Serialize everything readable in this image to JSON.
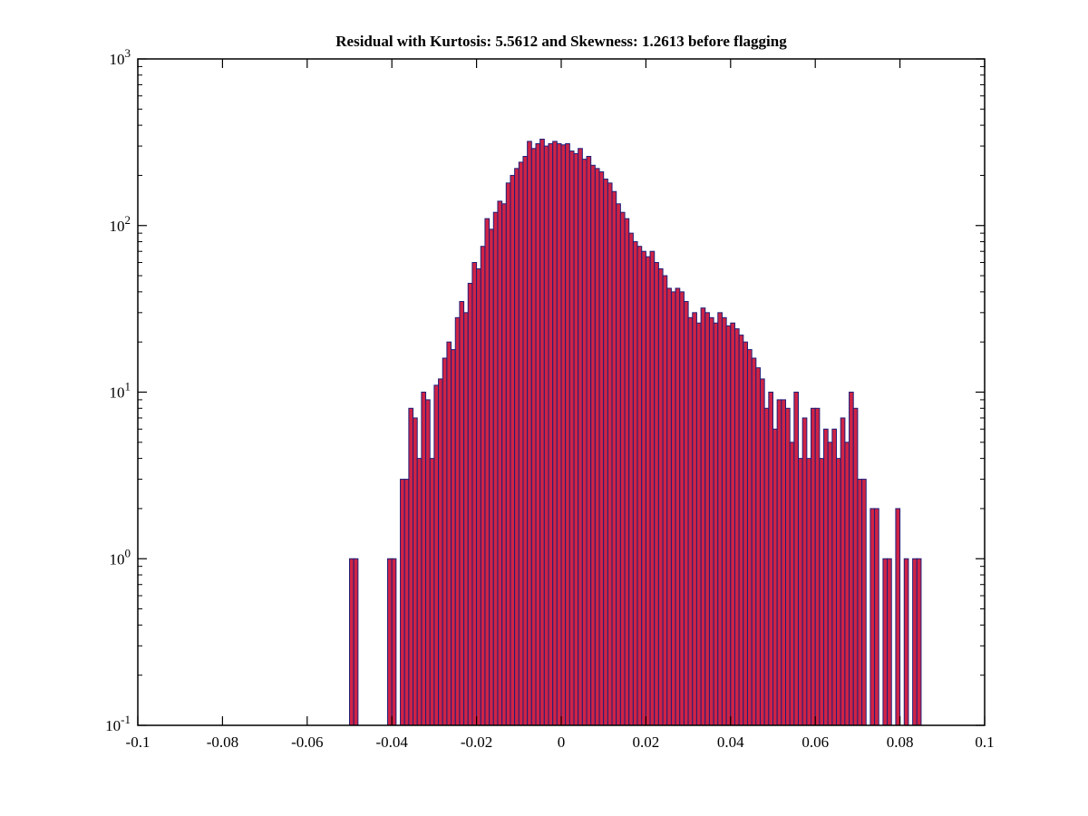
{
  "chart_data": {
    "type": "histogram",
    "title": "Residual with Kurtosis: 5.5612 and Skewness: 1.2613 before flagging",
    "xlabel": "",
    "ylabel": "",
    "x_range": [
      -0.1,
      0.1
    ],
    "y_scale": "log",
    "y_range_exponents": [
      -1,
      3
    ],
    "x_tick_values": [
      -0.1,
      -0.08,
      -0.06,
      -0.04,
      -0.02,
      0,
      0.02,
      0.04,
      0.06,
      0.08,
      0.1
    ],
    "x_tick_labels": [
      "-0.1",
      "-0.08",
      "-0.06",
      "-0.04",
      "-0.02",
      "0",
      "0.02",
      "0.04",
      "0.06",
      "0.08",
      "0.1"
    ],
    "y_tick_base": "10",
    "y_tick_exponents": [
      -1,
      0,
      1,
      2,
      3
    ],
    "grid": false,
    "legend": "none",
    "bin_start": -0.05,
    "bin_width": 0.001,
    "counts": [
      1,
      1,
      0,
      0,
      0,
      0,
      0,
      0,
      0,
      1,
      1,
      0,
      3,
      3,
      8,
      7,
      4,
      10,
      9,
      4,
      11,
      12,
      16,
      20,
      18,
      28,
      35,
      30,
      45,
      60,
      55,
      75,
      110,
      95,
      120,
      140,
      135,
      180,
      200,
      220,
      240,
      260,
      320,
      290,
      310,
      330,
      300,
      310,
      320,
      310,
      305,
      310,
      280,
      270,
      290,
      250,
      260,
      230,
      220,
      210,
      190,
      180,
      160,
      135,
      120,
      110,
      90,
      80,
      75,
      70,
      65,
      70,
      60,
      55,
      50,
      42,
      40,
      42,
      40,
      35,
      28,
      30,
      26,
      32,
      30,
      28,
      26,
      30,
      28,
      25,
      26,
      24,
      22,
      20,
      18,
      16,
      14,
      12,
      8,
      10,
      6,
      9,
      9,
      8,
      5,
      10,
      4,
      7,
      4,
      8,
      8,
      4,
      6,
      5,
      6,
      4,
      7,
      5,
      10,
      8,
      3,
      3,
      0,
      2,
      2,
      0,
      1,
      1,
      0,
      2,
      0,
      1,
      0,
      1,
      1
    ],
    "bar_fill": "#cf2345",
    "bar_edge": "#1f1f78",
    "axis_color": "#000000",
    "text_color": "#000000",
    "background": "#ffffff"
  }
}
